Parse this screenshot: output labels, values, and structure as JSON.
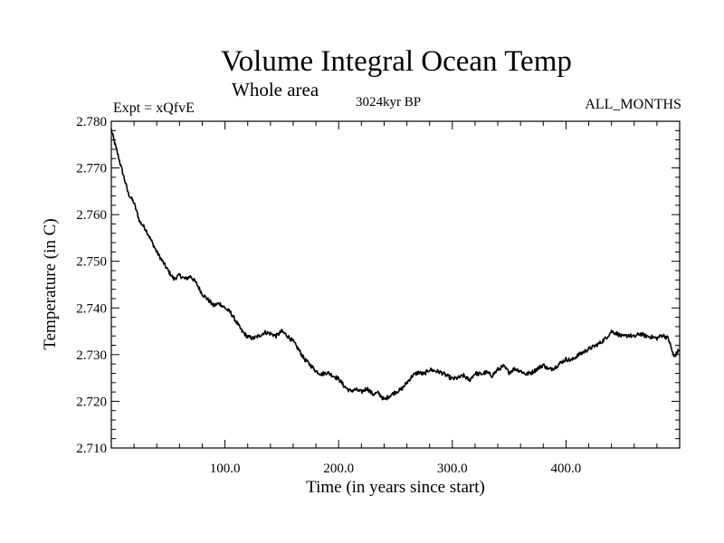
{
  "chart_data": {
    "type": "line",
    "title": "Volume Integral Ocean Temp",
    "subtitle": "Whole area",
    "expt_label": "Expt = xQfvE",
    "period_label": "3024kyr BP",
    "months_label": "ALL_MONTHS",
    "xlabel": "Time (in years since start)",
    "ylabel": "Temperature (in C)",
    "xlim": [
      0,
      500
    ],
    "ylim": [
      2.71,
      2.78
    ],
    "xticks": [
      100,
      200,
      300,
      400
    ],
    "xtick_labels": [
      "100.0",
      "200.0",
      "300.0",
      "400.0"
    ],
    "yticks": [
      2.71,
      2.72,
      2.73,
      2.74,
      2.75,
      2.76,
      2.77,
      2.78
    ],
    "ytick_labels": [
      "2.710",
      "2.720",
      "2.730",
      "2.740",
      "2.750",
      "2.760",
      "2.770",
      "2.780"
    ],
    "series": [
      {
        "name": "Volume integral ocean temperature",
        "color": "#000000",
        "x": [
          0,
          5,
          10,
          15,
          20,
          25,
          30,
          35,
          40,
          45,
          50,
          55,
          60,
          65,
          70,
          75,
          80,
          85,
          90,
          95,
          100,
          105,
          110,
          115,
          120,
          125,
          130,
          135,
          140,
          145,
          150,
          155,
          160,
          165,
          170,
          175,
          180,
          185,
          190,
          195,
          200,
          205,
          210,
          215,
          220,
          225,
          230,
          235,
          240,
          245,
          250,
          255,
          260,
          265,
          270,
          275,
          280,
          285,
          290,
          295,
          300,
          305,
          310,
          315,
          320,
          325,
          330,
          335,
          340,
          345,
          350,
          355,
          360,
          365,
          370,
          375,
          380,
          385,
          390,
          395,
          400,
          405,
          410,
          415,
          420,
          425,
          430,
          435,
          440,
          445,
          450,
          455,
          460,
          465,
          470,
          475,
          480,
          485,
          490,
          495,
          500
        ],
        "values": [
          2.7782,
          2.7735,
          2.769,
          2.7645,
          2.7625,
          2.7585,
          2.757,
          2.7545,
          2.752,
          2.75,
          2.748,
          2.7462,
          2.747,
          2.7462,
          2.7468,
          2.7452,
          2.743,
          2.7418,
          2.7405,
          2.741,
          2.74,
          2.739,
          2.737,
          2.735,
          2.7338,
          2.7335,
          2.734,
          2.7348,
          2.7345,
          2.734,
          2.735,
          2.734,
          2.7328,
          2.731,
          2.729,
          2.7278,
          2.7265,
          2.7258,
          2.7262,
          2.7255,
          2.7248,
          2.7232,
          2.7222,
          2.7225,
          2.722,
          2.7228,
          2.7215,
          2.7218,
          2.7203,
          2.7212,
          2.722,
          2.7225,
          2.724,
          2.7255,
          2.7262,
          2.7258,
          2.7268,
          2.7265,
          2.7262,
          2.7255,
          2.7248,
          2.725,
          2.7255,
          2.7245,
          2.726,
          2.7258,
          2.7262,
          2.7255,
          2.7268,
          2.7275,
          2.7262,
          2.727,
          2.7265,
          2.7258,
          2.7262,
          2.727,
          2.7278,
          2.7268,
          2.7272,
          2.7282,
          2.729,
          2.7288,
          2.7298,
          2.7305,
          2.7312,
          2.7318,
          2.7325,
          2.7335,
          2.735,
          2.7345,
          2.7338,
          2.7342,
          2.7338,
          2.7345,
          2.734,
          2.7338,
          2.7335,
          2.7342,
          2.7335,
          2.7295,
          2.7312
        ]
      }
    ]
  }
}
